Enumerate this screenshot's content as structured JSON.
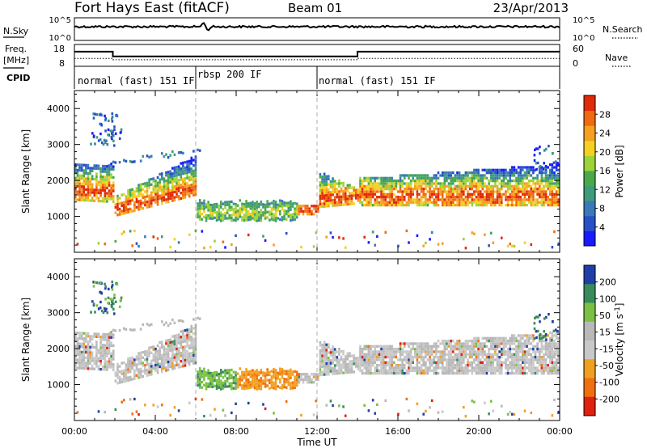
{
  "header": {
    "station": "Fort Hays East (fitACF)",
    "beam": "Beam 01",
    "date": "23/Apr/2013"
  },
  "top_panels": {
    "nsky_label": "N.Sky",
    "nsky_ticks": [
      "10^5",
      "10^0"
    ],
    "nsearch_label": "N.Search",
    "nsearch_ticks": [
      "10^5",
      "10^0"
    ],
    "freq_label": "Freq.",
    "freq_unit": "[MHz]",
    "freq_ticks": [
      "18",
      "8"
    ],
    "nave_label": "Nave",
    "nave_ticks": [
      "60",
      "0"
    ],
    "cpid_label": "CPID",
    "cpid_segments": [
      {
        "label": "normal (fast) 151 IF",
        "start_h": 0,
        "end_h": 6
      },
      {
        "label": "rbsp 200 IF",
        "start_h": 6,
        "end_h": 12
      },
      {
        "label": "normal (fast) 151 IF",
        "start_h": 12,
        "end_h": 24
      }
    ],
    "freq_series_mhz": [
      [
        0,
        15
      ],
      [
        1.9,
        15
      ],
      [
        1.9,
        12.5
      ],
      [
        14,
        12.5
      ],
      [
        14,
        15
      ],
      [
        24,
        15
      ]
    ],
    "nave_series": [
      [
        0,
        20
      ],
      [
        1.9,
        20
      ],
      [
        1.9,
        16
      ],
      [
        14,
        16
      ],
      [
        14,
        20
      ],
      [
        24,
        20
      ]
    ]
  },
  "chart_data": [
    {
      "type": "heatmap",
      "panel": "power",
      "ylabel": "Slant Range [km]",
      "ylim": [
        0,
        4500
      ],
      "yticks": [
        "1000",
        "2000",
        "3000",
        "4000"
      ],
      "xlim": [
        0,
        24
      ],
      "colorbar": {
        "label": "Power [dB]",
        "ticks": [
          "4",
          "8",
          "12",
          "16",
          "20",
          "24",
          "28"
        ],
        "range": [
          0,
          32
        ]
      }
    },
    {
      "type": "heatmap",
      "panel": "velocity",
      "ylabel": "Slant Range [km]",
      "ylim": [
        0,
        4500
      ],
      "yticks": [
        "1000",
        "2000",
        "3000",
        "4000"
      ],
      "xlim": [
        0,
        24
      ],
      "xlabel": "Time UT",
      "xticks": [
        "00:00",
        "04:00",
        "08:00",
        "12:00",
        "16:00",
        "20:00",
        "00:00"
      ],
      "colorbar": {
        "label": "Velocity [m s",
        "label_sup": "-1",
        "label_end": "]",
        "ticks": [
          "200",
          "100",
          "50",
          "15",
          "-15",
          "-50",
          "-100",
          "-200"
        ]
      }
    }
  ],
  "colors": {
    "power_scale": [
      "#1a1aff",
      "#2550c8",
      "#3a78b8",
      "#3d9a7a",
      "#4aa84a",
      "#9ed23a",
      "#f5d020",
      "#f5a020",
      "#f06a10",
      "#e02a0a"
    ],
    "velocity_scale": [
      "#1f3fa8",
      "#3a8b5a",
      "#7bc043",
      "#b8b8b8",
      "#c8c8c8",
      "#f0a020",
      "#f07010",
      "#e02010"
    ]
  }
}
